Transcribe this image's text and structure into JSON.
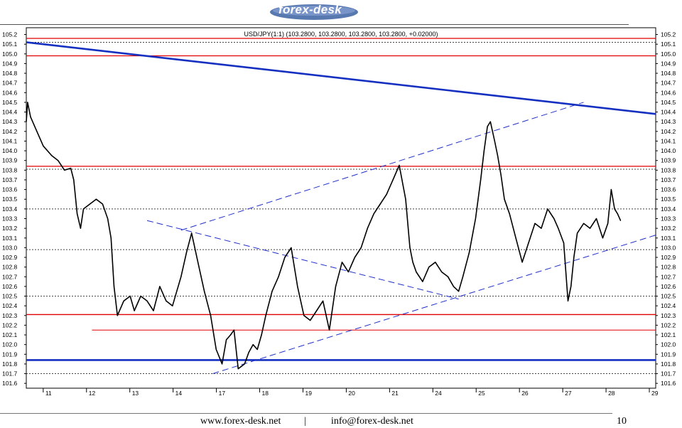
{
  "logo": {
    "text": "forex-desk"
  },
  "footer": {
    "website": "www.forex-desk.net",
    "separator": "|",
    "email": "info@forex-desk.net",
    "page_number": "10"
  },
  "chart_data": {
    "type": "line",
    "title": "USD/JPY(1:1) (103.2800, 103.2800, 103.2800, 103.2800, +0.02000)",
    "xlabel": "",
    "ylabel": "",
    "x_ticks": [
      "11",
      "12",
      "13",
      "14",
      "17",
      "18",
      "19",
      "20",
      "21",
      "24",
      "25",
      "26",
      "27",
      "28",
      "29"
    ],
    "y_ticks": [
      "105.2",
      "105.1",
      "105.0",
      "104.9",
      "104.8",
      "104.7",
      "104.6",
      "104.5",
      "104.4",
      "104.3",
      "104.2",
      "104.1",
      "104.0",
      "103.9",
      "103.8",
      "103.7",
      "103.6",
      "103.5",
      "103.4",
      "103.3",
      "103.2",
      "103.1",
      "103.0",
      "102.9",
      "102.8",
      "102.7",
      "102.6",
      "102.5",
      "102.4",
      "102.3",
      "102.2",
      "102.1",
      "102.0",
      "101.9",
      "101.8",
      "101.7",
      "101.6"
    ],
    "ylim": [
      101.55,
      105.27
    ],
    "xlim": [
      0,
      14.85
    ],
    "grid": false,
    "series": [
      {
        "x": [
          0,
          0.03,
          0.1,
          0.25,
          0.4,
          0.6,
          0.75,
          0.9,
          1.05,
          1.12,
          1.2,
          1.28,
          1.35,
          1.5,
          1.65,
          1.8,
          1.92,
          2.0,
          2.07,
          2.15,
          2.3,
          2.45,
          2.55,
          2.7,
          2.85,
          3.0,
          3.15,
          3.3,
          3.45,
          3.55,
          3.65,
          3.78,
          3.9,
          4.05,
          4.2,
          4.35,
          4.48,
          4.62,
          4.72,
          4.82,
          4.9,
          5.0,
          5.15,
          5.25,
          5.35,
          5.45,
          5.55,
          5.65,
          5.8,
          5.95,
          6.1,
          6.25,
          6.4,
          6.55,
          6.7,
          6.85,
          7.0,
          7.15,
          7.3,
          7.45,
          7.6,
          7.75,
          7.9,
          8.05,
          8.2,
          8.35,
          8.5,
          8.65,
          8.8,
          8.95,
          9.05,
          9.12,
          9.2,
          9.35,
          9.5,
          9.65,
          9.8,
          9.95,
          10.08,
          10.2,
          10.3,
          10.45,
          10.6,
          10.72,
          10.8,
          10.88,
          10.95,
          11.05,
          11.12,
          11.2,
          11.28,
          11.4,
          11.55,
          11.7,
          11.85,
          12.0,
          12.15,
          12.3,
          12.45,
          12.55,
          12.68,
          12.78,
          12.85,
          12.92,
          13.0,
          13.15,
          13.3,
          13.45,
          13.6,
          13.72,
          13.8,
          13.88,
          13.95,
          14.02
        ],
        "y": [
          104.3,
          104.5,
          104.35,
          104.2,
          104.05,
          103.95,
          103.9,
          103.8,
          103.82,
          103.7,
          103.35,
          103.2,
          103.4,
          103.45,
          103.5,
          103.45,
          103.3,
          103.1,
          102.6,
          102.3,
          102.45,
          102.5,
          102.35,
          102.5,
          102.45,
          102.35,
          102.6,
          102.45,
          102.4,
          102.55,
          102.7,
          102.95,
          103.15,
          102.85,
          102.55,
          102.3,
          101.95,
          101.8,
          102.05,
          102.1,
          102.15,
          101.75,
          101.8,
          101.92,
          102.0,
          101.95,
          102.1,
          102.3,
          102.55,
          102.7,
          102.9,
          103.0,
          102.6,
          102.3,
          102.25,
          102.35,
          102.45,
          102.15,
          102.6,
          102.85,
          102.75,
          102.9,
          103.0,
          103.2,
          103.35,
          103.45,
          103.55,
          103.7,
          103.85,
          103.5,
          103.0,
          102.85,
          102.75,
          102.65,
          102.8,
          102.85,
          102.75,
          102.7,
          102.6,
          102.55,
          102.7,
          102.95,
          103.3,
          103.7,
          104.0,
          104.25,
          104.3,
          104.1,
          103.95,
          103.75,
          103.5,
          103.35,
          103.1,
          102.85,
          103.05,
          103.25,
          103.2,
          103.4,
          103.3,
          103.2,
          103.05,
          102.45,
          102.6,
          102.9,
          103.15,
          103.25,
          103.2,
          103.3,
          103.1,
          103.25,
          103.6,
          103.4,
          103.35,
          103.28
        ]
      }
    ],
    "horizontal_lines": [
      {
        "y": 105.16,
        "color": "#e00000",
        "width": 1.3
      },
      {
        "y": 104.98,
        "color": "#e00000",
        "width": 1.3
      },
      {
        "y": 103.84,
        "color": "#e00000",
        "width": 1.3
      },
      {
        "y": 102.31,
        "color": "#e00000",
        "width": 1.3
      },
      {
        "y": 101.84,
        "color": "#1530c0",
        "width": 2.6
      }
    ],
    "support_segment": {
      "x": [
        1.55,
        14.85
      ],
      "y": [
        102.15,
        102.15
      ],
      "color": "#e00000"
    },
    "dotted_levels": [
      105.12,
      103.81,
      103.4,
      102.98,
      102.5,
      101.7
    ],
    "trendlines": [
      {
        "x": [
          0,
          14.85
        ],
        "y": [
          105.12,
          104.38
        ],
        "color": "#1530c0",
        "dashed": false,
        "width": 2.6
      },
      {
        "x": [
          3.65,
          13.15
        ],
        "y": [
          103.18,
          104.5
        ],
        "color": "#2030c8",
        "dashed": true,
        "width": 1
      },
      {
        "x": [
          2.85,
          10.2
        ],
        "y": [
          103.28,
          102.47
        ],
        "color": "#2030c8",
        "dashed": true,
        "width": 1
      },
      {
        "x": [
          4.4,
          14.85
        ],
        "y": [
          101.7,
          103.13
        ],
        "color": "#2030c8",
        "dashed": true,
        "width": 1
      }
    ],
    "colors": {
      "price": "#000000",
      "axis": "#000000",
      "resistance": "#e00000",
      "trend": "#1530c0"
    }
  }
}
